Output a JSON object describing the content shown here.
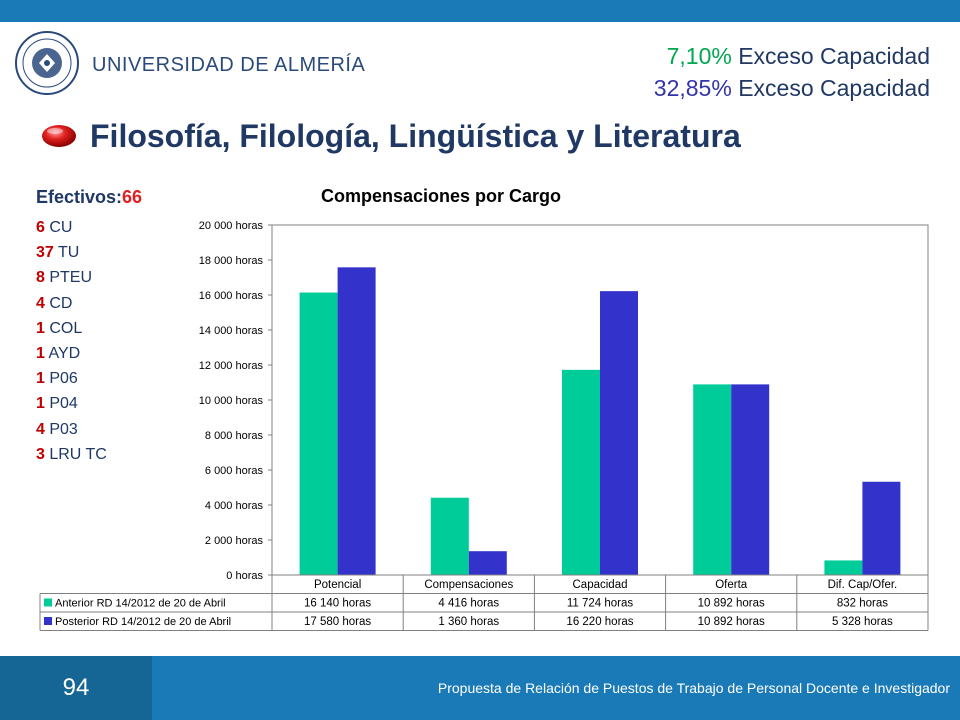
{
  "header": {
    "university": "UNIVERSIDAD DE ALMERÍA",
    "cap1_pct": "7,10%",
    "cap1_label": " Exceso Capacidad",
    "cap2_pct": "32,85%",
    "cap2_label": " Exceso Capacidad"
  },
  "title": "Filosofía, Filología, Lingüística y Literatura",
  "staff": {
    "label": "Efectivos:",
    "total": "66",
    "items": [
      {
        "count": "6",
        "name": " CU"
      },
      {
        "count": "37",
        "name": " TU"
      },
      {
        "count": "8",
        "name": " PTEU"
      },
      {
        "count": "4",
        "name": " CD"
      },
      {
        "count": "1",
        "name": " COL"
      },
      {
        "count": "1",
        "name": " AYD"
      },
      {
        "count": "1",
        "name": " P06"
      },
      {
        "count": "1",
        "name": " P04"
      },
      {
        "count": "4",
        "name": " P03"
      },
      {
        "count": "3",
        "name": " LRU TC"
      }
    ]
  },
  "chart_data": {
    "type": "bar",
    "title": "Compensaciones por Cargo",
    "categories": [
      "Potencial",
      "Compensaciones",
      "Capacidad",
      "Oferta",
      "Dif. Cap/Ofer."
    ],
    "ylim": [
      0,
      20000
    ],
    "yticks": [
      0,
      2000,
      4000,
      6000,
      8000,
      10000,
      12000,
      14000,
      16000,
      18000,
      20000
    ],
    "ytick_labels": [
      "0 horas",
      "2 000 horas",
      "4 000 horas",
      "6 000 horas",
      "8 000 horas",
      "10 000 horas",
      "12 000 horas",
      "14 000 horas",
      "16 000 horas",
      "18 000 horas",
      "20 000 horas"
    ],
    "grid": false,
    "series": [
      {
        "name": "Anterior RD 14/2012 de 20 de Abril",
        "color": "#00cc99",
        "values": [
          16140,
          4416,
          11724,
          10892,
          832
        ],
        "labels": [
          "16 140 horas",
          "4 416 horas",
          "11 724 horas",
          "10 892 horas",
          "832 horas"
        ]
      },
      {
        "name": "Posterior RD 14/2012 de 20 de Abril",
        "color": "#3333cc",
        "values": [
          17580,
          1360,
          16220,
          10892,
          5328
        ],
        "labels": [
          "17 580 horas",
          "1 360 horas",
          "16 220 horas",
          "10 892 horas",
          "5 328 horas"
        ]
      }
    ]
  },
  "footer": {
    "page": "94",
    "text": "Propuesta de Relación de Puestos de Trabajo de Personal Docente e Investigador"
  },
  "colors": {
    "bar_blue": "#1a7ab8",
    "title_navy": "#1f3864",
    "accent_red": "#e02020",
    "green_pct": "#00a650"
  }
}
